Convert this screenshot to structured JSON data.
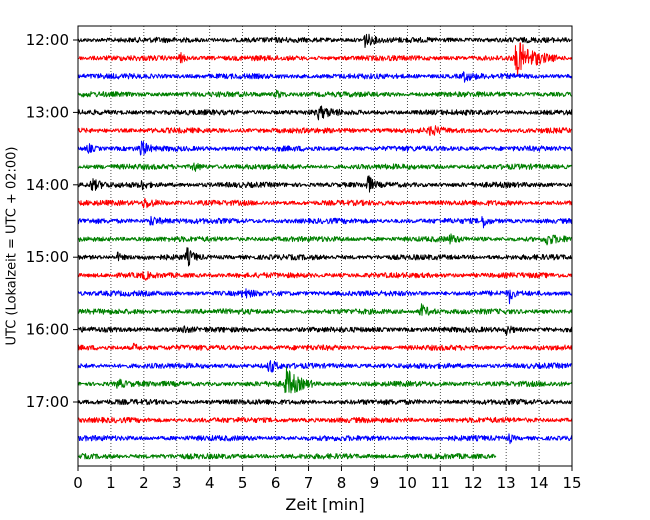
{
  "chart_data": {
    "type": "line",
    "title": "",
    "xlabel": "Zeit  [min]",
    "ylabel": "UTC (Lokalzeit = UTC + 02:00)",
    "xlim": [
      0,
      15
    ],
    "x_ticks": [
      0,
      1,
      2,
      3,
      4,
      5,
      6,
      7,
      8,
      9,
      10,
      11,
      12,
      13,
      14,
      15
    ],
    "y_tick_labels": [
      "12:00",
      "13:00",
      "14:00",
      "15:00",
      "16:00",
      "17:00"
    ],
    "x_grid": "dotted",
    "trace_colors": [
      "#000000",
      "#ff0000",
      "#0000ff",
      "#008000"
    ],
    "traces": [
      {
        "start": "12:00",
        "end_min": 15,
        "events": [
          {
            "t": 8.7,
            "amp": 2.2,
            "dur": 0.6
          }
        ]
      },
      {
        "start": "12:15",
        "end_min": 15,
        "events": [
          {
            "t": 13.3,
            "amp": 5.5,
            "dur": 1.3
          },
          {
            "t": 3.1,
            "amp": 1.4,
            "dur": 0.4
          }
        ]
      },
      {
        "start": "12:30",
        "end_min": 15,
        "events": [
          {
            "t": 11.7,
            "amp": 1.4,
            "dur": 0.6
          }
        ]
      },
      {
        "start": "12:45",
        "end_min": 15,
        "events": [
          {
            "t": 6.0,
            "amp": 1.2,
            "dur": 0.5
          }
        ]
      },
      {
        "start": "13:00",
        "end_min": 15,
        "events": [
          {
            "t": 7.3,
            "amp": 1.8,
            "dur": 0.8
          }
        ]
      },
      {
        "start": "13:15",
        "end_min": 15,
        "events": [
          {
            "t": 10.7,
            "amp": 1.6,
            "dur": 0.5
          }
        ]
      },
      {
        "start": "13:30",
        "end_min": 15,
        "events": [
          {
            "t": 1.9,
            "amp": 3.0,
            "dur": 0.4
          },
          {
            "t": 0.3,
            "amp": 1.4,
            "dur": 0.4
          }
        ]
      },
      {
        "start": "13:45",
        "end_min": 15,
        "events": [
          {
            "t": 3.5,
            "amp": 1.4,
            "dur": 0.5
          }
        ]
      },
      {
        "start": "14:00",
        "end_min": 15,
        "events": [
          {
            "t": 8.8,
            "amp": 3.2,
            "dur": 0.3
          },
          {
            "t": 0.4,
            "amp": 1.8,
            "dur": 0.6
          },
          {
            "t": 1.9,
            "amp": 1.5,
            "dur": 0.4
          }
        ]
      },
      {
        "start": "14:15",
        "end_min": 15,
        "events": [
          {
            "t": 2.0,
            "amp": 1.6,
            "dur": 0.8
          }
        ]
      },
      {
        "start": "14:30",
        "end_min": 15,
        "events": [
          {
            "t": 12.3,
            "amp": 2.0,
            "dur": 0.3
          },
          {
            "t": 2.2,
            "amp": 1.4,
            "dur": 0.7
          }
        ]
      },
      {
        "start": "14:45",
        "end_min": 15,
        "events": [
          {
            "t": 14.2,
            "amp": 1.5,
            "dur": 0.8
          },
          {
            "t": 11.3,
            "amp": 1.2,
            "dur": 0.4
          }
        ]
      },
      {
        "start": "15:00",
        "end_min": 15,
        "events": [
          {
            "t": 3.3,
            "amp": 2.7,
            "dur": 0.5
          },
          {
            "t": 1.2,
            "amp": 1.2,
            "dur": 0.3
          }
        ]
      },
      {
        "start": "15:15",
        "end_min": 15,
        "events": [
          {
            "t": 2.0,
            "amp": 1.2,
            "dur": 0.3
          }
        ]
      },
      {
        "start": "15:30",
        "end_min": 15,
        "events": [
          {
            "t": 13.1,
            "amp": 2.8,
            "dur": 0.2
          },
          {
            "t": 5.0,
            "amp": 1.3,
            "dur": 0.5
          }
        ]
      },
      {
        "start": "15:45",
        "end_min": 15,
        "events": [
          {
            "t": 10.4,
            "amp": 2.2,
            "dur": 0.6
          }
        ]
      },
      {
        "start": "16:00",
        "end_min": 15,
        "events": [
          {
            "t": 13.0,
            "amp": 1.3,
            "dur": 0.5
          },
          {
            "t": 3.2,
            "amp": 1.2,
            "dur": 0.3
          }
        ]
      },
      {
        "start": "16:15",
        "end_min": 15,
        "events": [
          {
            "t": 1.7,
            "amp": 1.2,
            "dur": 0.3
          }
        ]
      },
      {
        "start": "16:30",
        "end_min": 15,
        "events": [
          {
            "t": 5.8,
            "amp": 2.6,
            "dur": 0.4
          }
        ]
      },
      {
        "start": "16:45",
        "end_min": 15,
        "events": [
          {
            "t": 6.3,
            "amp": 5.0,
            "dur": 0.9
          },
          {
            "t": 1.2,
            "amp": 1.3,
            "dur": 0.5
          }
        ]
      },
      {
        "start": "17:00",
        "end_min": 15,
        "events": []
      },
      {
        "start": "17:15",
        "end_min": 15,
        "events": []
      },
      {
        "start": "17:30",
        "end_min": 15,
        "events": [
          {
            "t": 13.1,
            "amp": 1.4,
            "dur": 0.2
          }
        ]
      },
      {
        "start": "17:45",
        "end_min": 12.7,
        "events": []
      }
    ]
  }
}
